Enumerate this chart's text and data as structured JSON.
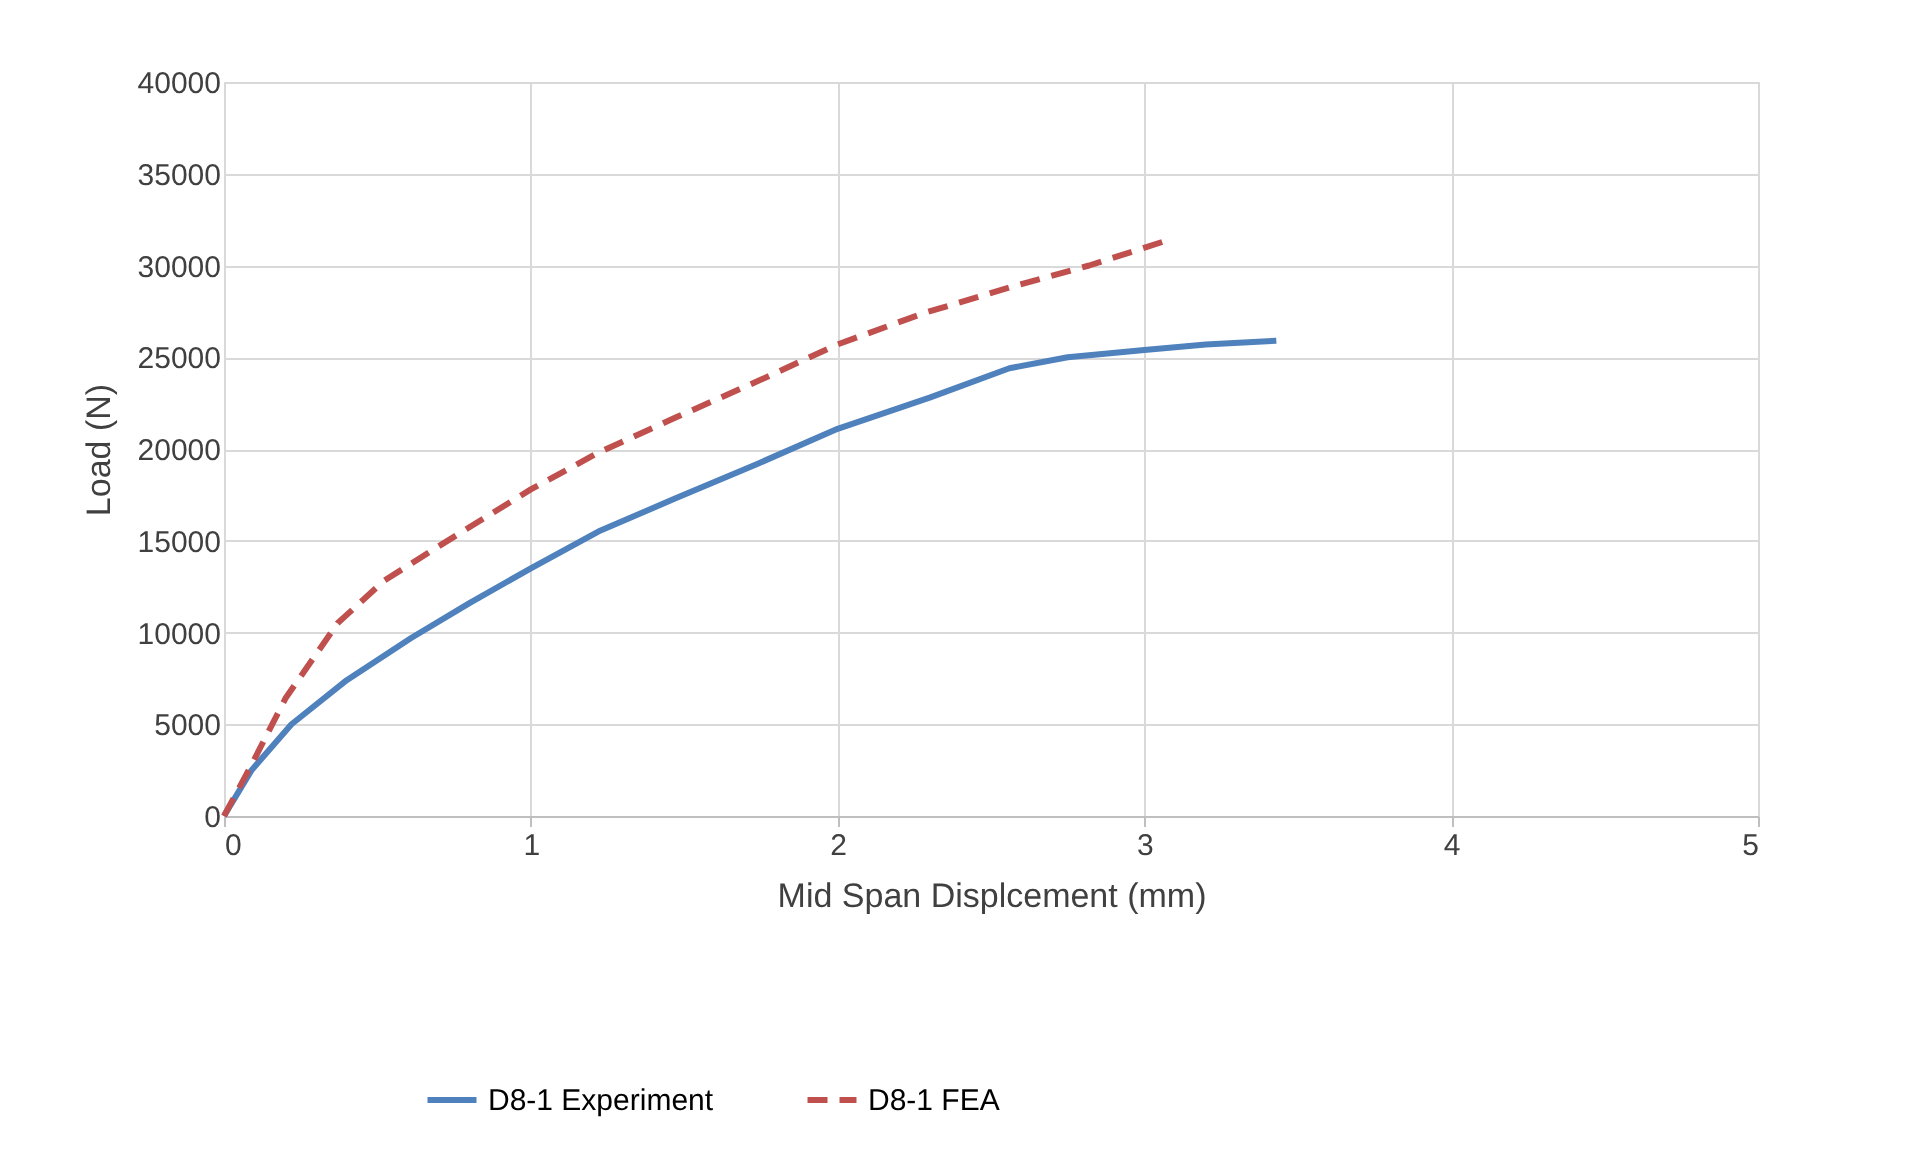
{
  "chart_data": {
    "type": "line",
    "xlabel": "Mid Span Displcement (mm)",
    "ylabel": "Load (N)",
    "xlim": [
      0,
      5
    ],
    "xticks": [
      0,
      1,
      2,
      3,
      4,
      5
    ],
    "ylim": [
      0,
      40000
    ],
    "yticks": [
      0,
      5000,
      10000,
      15000,
      20000,
      25000,
      30000,
      35000,
      40000
    ],
    "grid": true,
    "legend": "bottom",
    "series": [
      {
        "name": "D8-1 Experiment",
        "color": "#4f81bd",
        "line_style": "solid",
        "x": [
          0,
          0.09,
          0.22,
          0.4,
          0.61,
          0.8,
          1.0,
          1.22,
          1.47,
          1.74,
          2.0,
          2.3,
          2.56,
          2.75,
          3.0,
          3.2,
          3.43
        ],
        "values": [
          0,
          2500,
          5000,
          7400,
          9700,
          11600,
          13500,
          15500,
          17300,
          19200,
          21100,
          22800,
          24400,
          25000,
          25400,
          25700,
          25900
        ]
      },
      {
        "name": "D8-1 FEA",
        "color": "#c0504d",
        "line_style": "dashed",
        "x": [
          0,
          0.09,
          0.2,
          0.37,
          0.52,
          0.69,
          1.0,
          1.22,
          1.47,
          1.74,
          2.0,
          2.28,
          2.56,
          2.82,
          3.08
        ],
        "values": [
          0,
          2800,
          6400,
          10500,
          12800,
          14600,
          17800,
          19800,
          21700,
          23700,
          25700,
          27400,
          28800,
          30000,
          31400
        ]
      }
    ]
  }
}
